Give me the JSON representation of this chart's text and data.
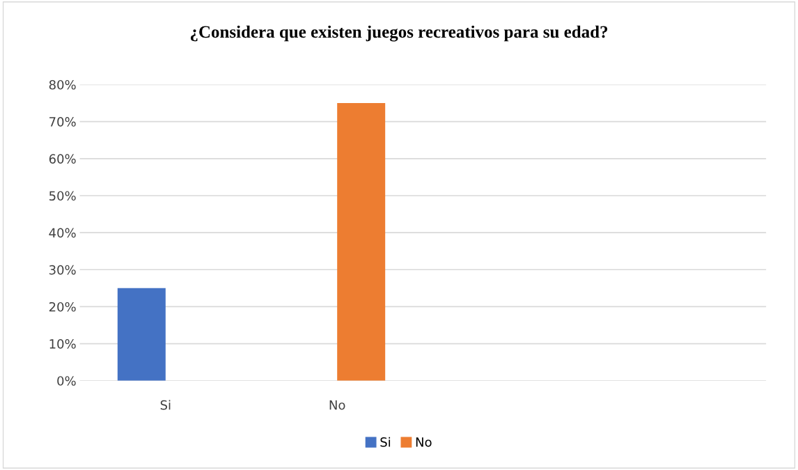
{
  "chart_data": {
    "type": "bar",
    "title": "¿Considera que existen juegos recreativos para su edad?",
    "categories": [
      "Si",
      "No",
      null,
      null
    ],
    "series": [
      {
        "name": "Si",
        "color": "#4472c4",
        "values": [
          25,
          null,
          null,
          null
        ]
      },
      {
        "name": "No",
        "color": "#ed7d31",
        "values": [
          null,
          75,
          null,
          null
        ]
      }
    ],
    "ylim": [
      0,
      80
    ],
    "yticks": [
      {
        "value": 0,
        "label": "0%"
      },
      {
        "value": 10,
        "label": "10%"
      },
      {
        "value": 20,
        "label": "20%"
      },
      {
        "value": 30,
        "label": "30%"
      },
      {
        "value": 40,
        "label": "40%"
      },
      {
        "value": 50,
        "label": "50%"
      },
      {
        "value": 60,
        "label": "60%"
      },
      {
        "value": 70,
        "label": "70%"
      },
      {
        "value": 80,
        "label": "80%"
      }
    ],
    "grid": "y",
    "legend": "bottom"
  }
}
